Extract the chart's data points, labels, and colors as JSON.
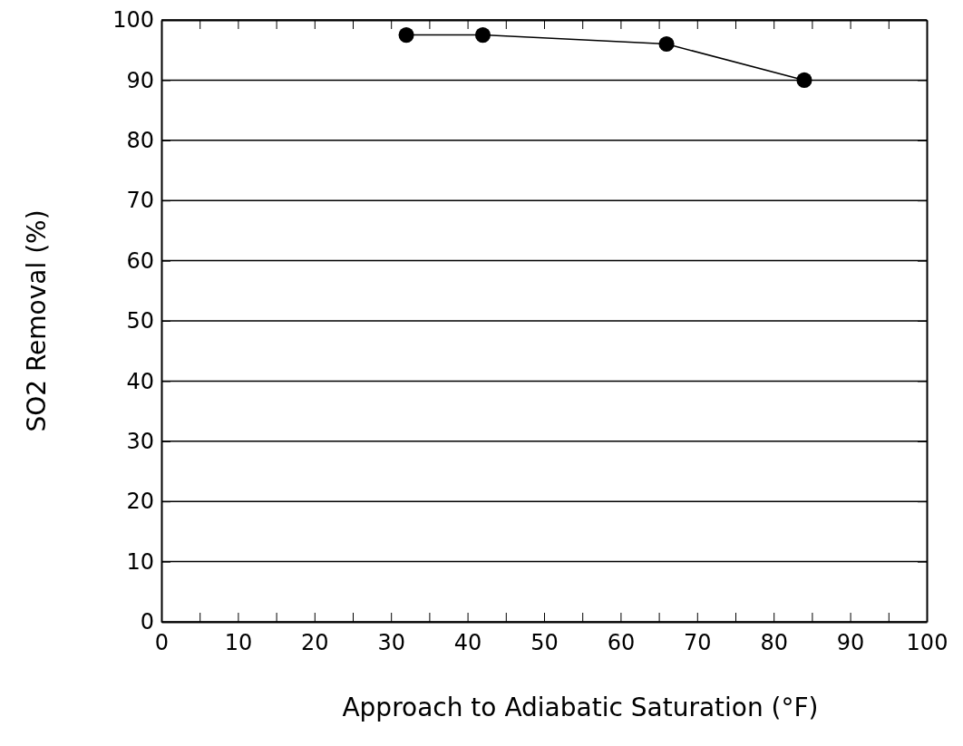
{
  "chart_data": {
    "type": "line",
    "xlabel": "Approach to Adiabatic Saturation (°F)",
    "ylabel": "SO2 Removal (%)",
    "x": [
      32,
      42,
      66,
      84
    ],
    "series": [
      {
        "color": "#000000",
        "values": [
          97.5,
          97.5,
          96,
          90
        ]
      }
    ],
    "xlim": [
      0,
      100
    ],
    "ylim": [
      0,
      100
    ],
    "xticks": [
      0,
      {
        "value": 5,
        "label": null
      },
      10,
      {
        "value": 15,
        "label": null
      },
      20,
      {
        "value": 25,
        "label": null
      },
      30,
      {
        "value": 35,
        "label": null
      },
      40,
      {
        "value": 45,
        "label": null
      },
      50,
      {
        "value": 55,
        "label": null
      },
      60,
      {
        "value": 65,
        "label": null
      },
      70,
      {
        "value": 75,
        "label": null
      },
      80,
      {
        "value": 85,
        "label": null
      },
      90,
      {
        "value": 95,
        "label": null
      },
      100
    ],
    "yticks": [
      0,
      10,
      20,
      30,
      40,
      50,
      60,
      70,
      80,
      90,
      100
    ],
    "grid": "y",
    "marker": "circle",
    "line_style": "solid"
  }
}
